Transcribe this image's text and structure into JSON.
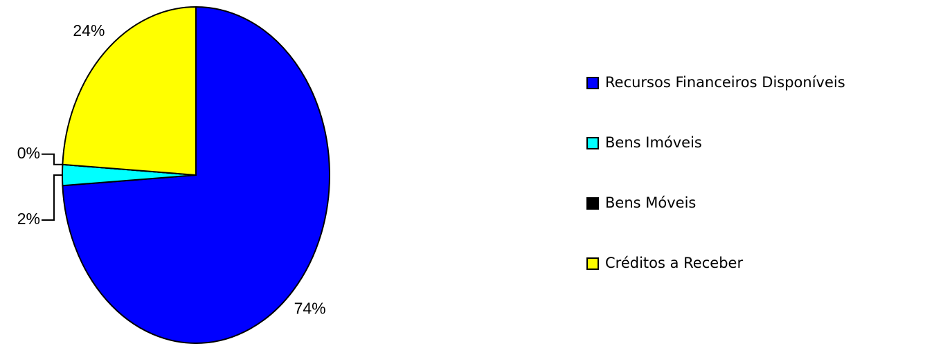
{
  "chart_data": {
    "type": "pie",
    "series": [
      {
        "name": "Recursos Financeiros Disponíveis",
        "color": "#0000ff"
      },
      {
        "name": "Bens Imóveis",
        "color": "#00ffff"
      },
      {
        "name": "Bens Móveis",
        "color": "#000000"
      },
      {
        "name": "Créditos a Receber",
        "color": "#ffff00"
      }
    ],
    "values": [
      74,
      2,
      0,
      24
    ],
    "value_labels": [
      "74%",
      "2%",
      "0%",
      "24%"
    ],
    "legend": "right"
  }
}
